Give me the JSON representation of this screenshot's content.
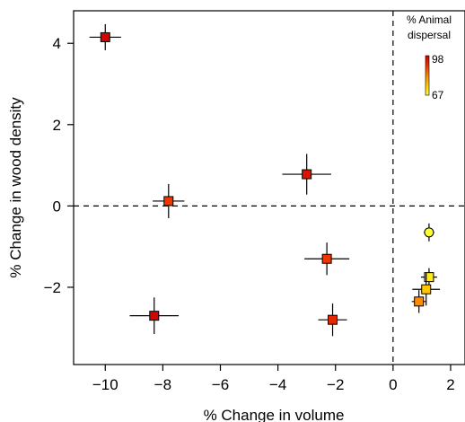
{
  "chart_data": {
    "type": "scatter",
    "xlabel": "% Change in volume",
    "ylabel": "% Change in wood density",
    "xlim": [
      -11.1,
      2.5
    ],
    "ylim": [
      -3.9,
      4.8
    ],
    "xticks": [
      -10,
      -8,
      -6,
      -4,
      -2,
      0,
      2
    ],
    "yticks": [
      -2,
      0,
      2,
      4
    ],
    "reference_lines": {
      "x": 0,
      "y": 0,
      "style": "dashed"
    },
    "legend": {
      "title_line1": "% Animal",
      "title_line2": "dispersal",
      "max_label": "98",
      "min_label": "67",
      "max_value": 98,
      "min_value": 67,
      "placement": "top-right",
      "colormap": [
        "#ffff33",
        "#ffcc00",
        "#ff8800",
        "#ee3300",
        "#cc0000"
      ]
    },
    "points": [
      {
        "x": -10.0,
        "y": 4.15,
        "xerr": 0.55,
        "yerr": 0.32,
        "dispersal": 97,
        "marker": "square"
      },
      {
        "x": -7.8,
        "y": 0.12,
        "xerr": 0.55,
        "yerr": 0.42,
        "dispersal": 90,
        "marker": "square"
      },
      {
        "x": -3.0,
        "y": 0.78,
        "xerr": 0.85,
        "yerr": 0.5,
        "dispersal": 95,
        "marker": "square"
      },
      {
        "x": -8.3,
        "y": -2.7,
        "xerr": 0.85,
        "yerr": 0.45,
        "dispersal": 97,
        "marker": "square"
      },
      {
        "x": -2.3,
        "y": -1.3,
        "xerr": 0.78,
        "yerr": 0.4,
        "dispersal": 90,
        "marker": "square"
      },
      {
        "x": -2.1,
        "y": -2.8,
        "xerr": 0.5,
        "yerr": 0.4,
        "dispersal": 92,
        "marker": "square"
      },
      {
        "x": 1.25,
        "y": -0.65,
        "xerr": 0.18,
        "yerr": 0.22,
        "dispersal": 67,
        "marker": "circle"
      },
      {
        "x": 1.25,
        "y": -1.75,
        "xerr": 0.28,
        "yerr": 0.22,
        "dispersal": 70,
        "marker": "square"
      },
      {
        "x": 1.15,
        "y": -2.05,
        "xerr": 0.48,
        "yerr": 0.4,
        "dispersal": 75,
        "marker": "square"
      },
      {
        "x": 0.9,
        "y": -2.35,
        "xerr": 0.25,
        "yerr": 0.28,
        "dispersal": 82,
        "marker": "square"
      }
    ]
  }
}
